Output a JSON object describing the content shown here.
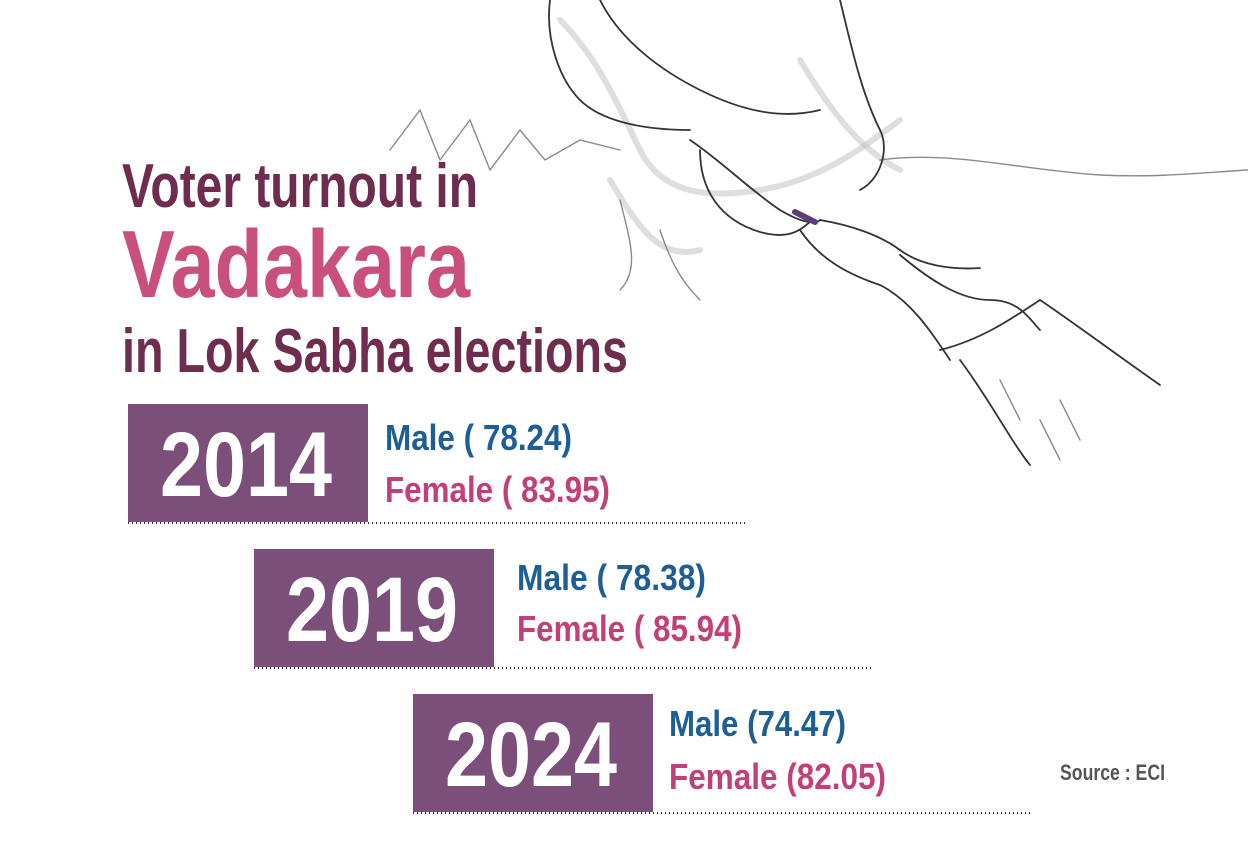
{
  "header": {
    "line1": "Voter turnout in",
    "highlight": "Vadakara",
    "line3": "in Lok Sabha elections"
  },
  "years": [
    {
      "year": "2014",
      "male": "Male ( 78.24)",
      "female": "Female ( 83.95)"
    },
    {
      "year": "2019",
      "male": "Male ( 78.38)",
      "female": "Female ( 85.94)"
    },
    {
      "year": "2024",
      "male": "Male (74.47)",
      "female": "Female (82.05)"
    }
  ],
  "source": "Source : ECI"
}
